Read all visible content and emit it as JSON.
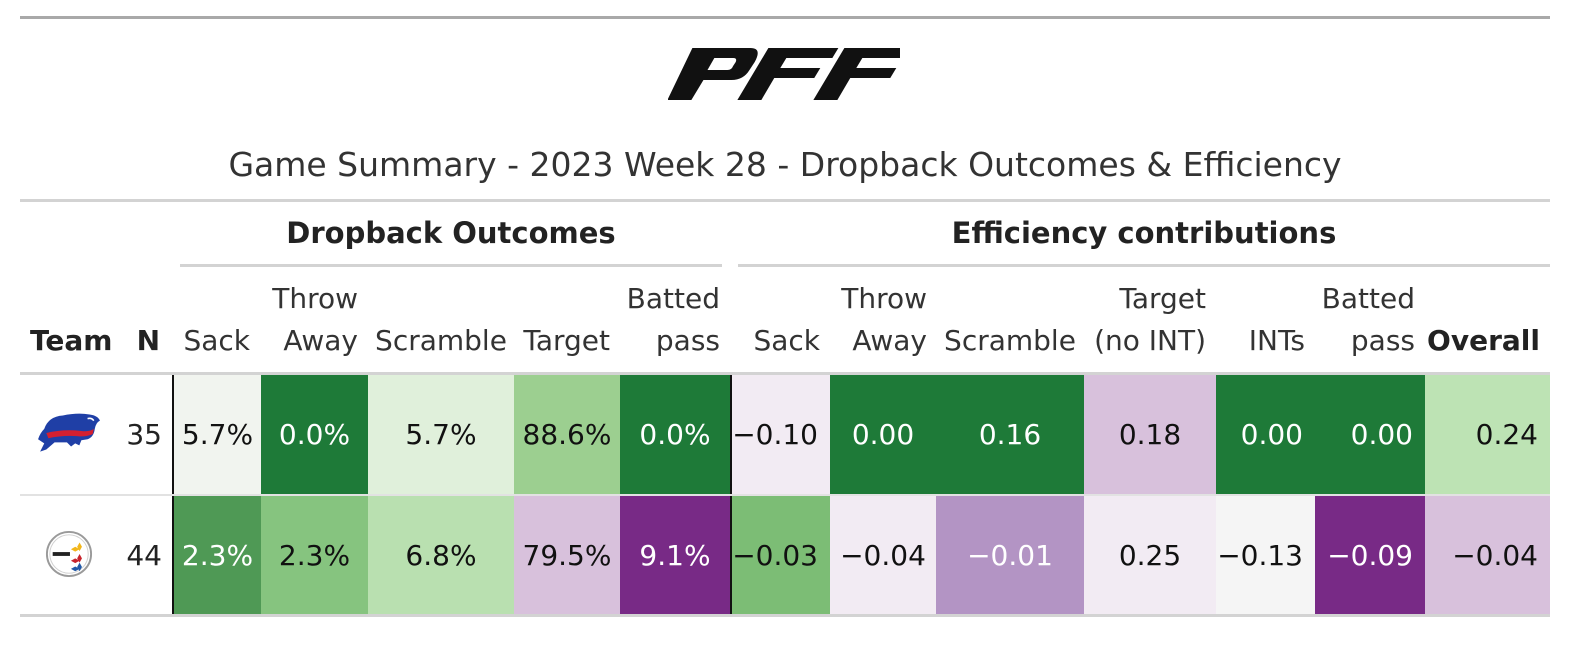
{
  "logo": {
    "text": "PFF",
    "name": "pff-logo"
  },
  "title": "Game Summary - 2023 Week 28 - Dropback Outcomes & Efficiency",
  "groups": {
    "dropback": "Dropback Outcomes",
    "efficiency": "Efficiency contributions"
  },
  "columns": {
    "team": "Team",
    "n": "N",
    "do_sack": "Sack",
    "do_throw_1": "Throw",
    "do_throw_2": "Away",
    "do_scramble": "Scramble",
    "do_target": "Target",
    "do_batted_1": "Batted",
    "do_batted_2": "pass",
    "ef_sack": "Sack",
    "ef_throw_1": "Throw",
    "ef_throw_2": "Away",
    "ef_scramble": "Scramble",
    "ef_target_1": "Target",
    "ef_target_2": "(no INT)",
    "ef_ints": "INTs",
    "ef_batted_1": "Batted",
    "ef_batted_2": "pass",
    "ef_overall": "Overall"
  },
  "rows": [
    {
      "team_icon": "buffalo-bills-logo-icon",
      "n": "35",
      "cells": [
        {
          "value": "5.7%",
          "bg": "#f1f4ef",
          "fg": "#111111"
        },
        {
          "value": "0.0%",
          "bg": "#1e7a38",
          "fg": "#ffffff"
        },
        {
          "value": "5.7%",
          "bg": "#e0f0db",
          "fg": "#111111"
        },
        {
          "value": "88.6%",
          "bg": "#9ccf90",
          "fg": "#111111"
        },
        {
          "value": "0.0%",
          "bg": "#1e7a38",
          "fg": "#ffffff"
        },
        {
          "value": "−0.10",
          "bg": "#f2ebf3",
          "fg": "#111111"
        },
        {
          "value": "0.00",
          "bg": "#1e7a38",
          "fg": "#ffffff"
        },
        {
          "value": "0.16",
          "bg": "#1e7a38",
          "fg": "#ffffff"
        },
        {
          "value": "0.18",
          "bg": "#d8c1dc",
          "fg": "#111111"
        },
        {
          "value": "0.00",
          "bg": "#1e7a38",
          "fg": "#ffffff"
        },
        {
          "value": "0.00",
          "bg": "#1e7a38",
          "fg": "#ffffff"
        },
        {
          "value": "0.24",
          "bg": "#bde3b4",
          "fg": "#111111"
        }
      ]
    },
    {
      "team_icon": "pittsburgh-steelers-logo-icon",
      "n": "44",
      "cells": [
        {
          "value": "2.3%",
          "bg": "#4f9955",
          "fg": "#ffffff"
        },
        {
          "value": "2.3%",
          "bg": "#86c47f",
          "fg": "#111111"
        },
        {
          "value": "6.8%",
          "bg": "#b9e0b0",
          "fg": "#111111"
        },
        {
          "value": "79.5%",
          "bg": "#d8c1dc",
          "fg": "#111111"
        },
        {
          "value": "9.1%",
          "bg": "#782a86",
          "fg": "#ffffff"
        },
        {
          "value": "−0.03",
          "bg": "#7cbd75",
          "fg": "#111111"
        },
        {
          "value": "−0.04",
          "bg": "#f2ebf3",
          "fg": "#111111"
        },
        {
          "value": "−0.01",
          "bg": "#b394c4",
          "fg": "#ffffff"
        },
        {
          "value": "0.25",
          "bg": "#f2ebf3",
          "fg": "#111111"
        },
        {
          "value": "−0.13",
          "bg": "#f5f5f5",
          "fg": "#111111"
        },
        {
          "value": "−0.09",
          "bg": "#782a86",
          "fg": "#ffffff"
        },
        {
          "value": "−0.04",
          "bg": "#d8c1dc",
          "fg": "#111111"
        }
      ]
    }
  ]
}
